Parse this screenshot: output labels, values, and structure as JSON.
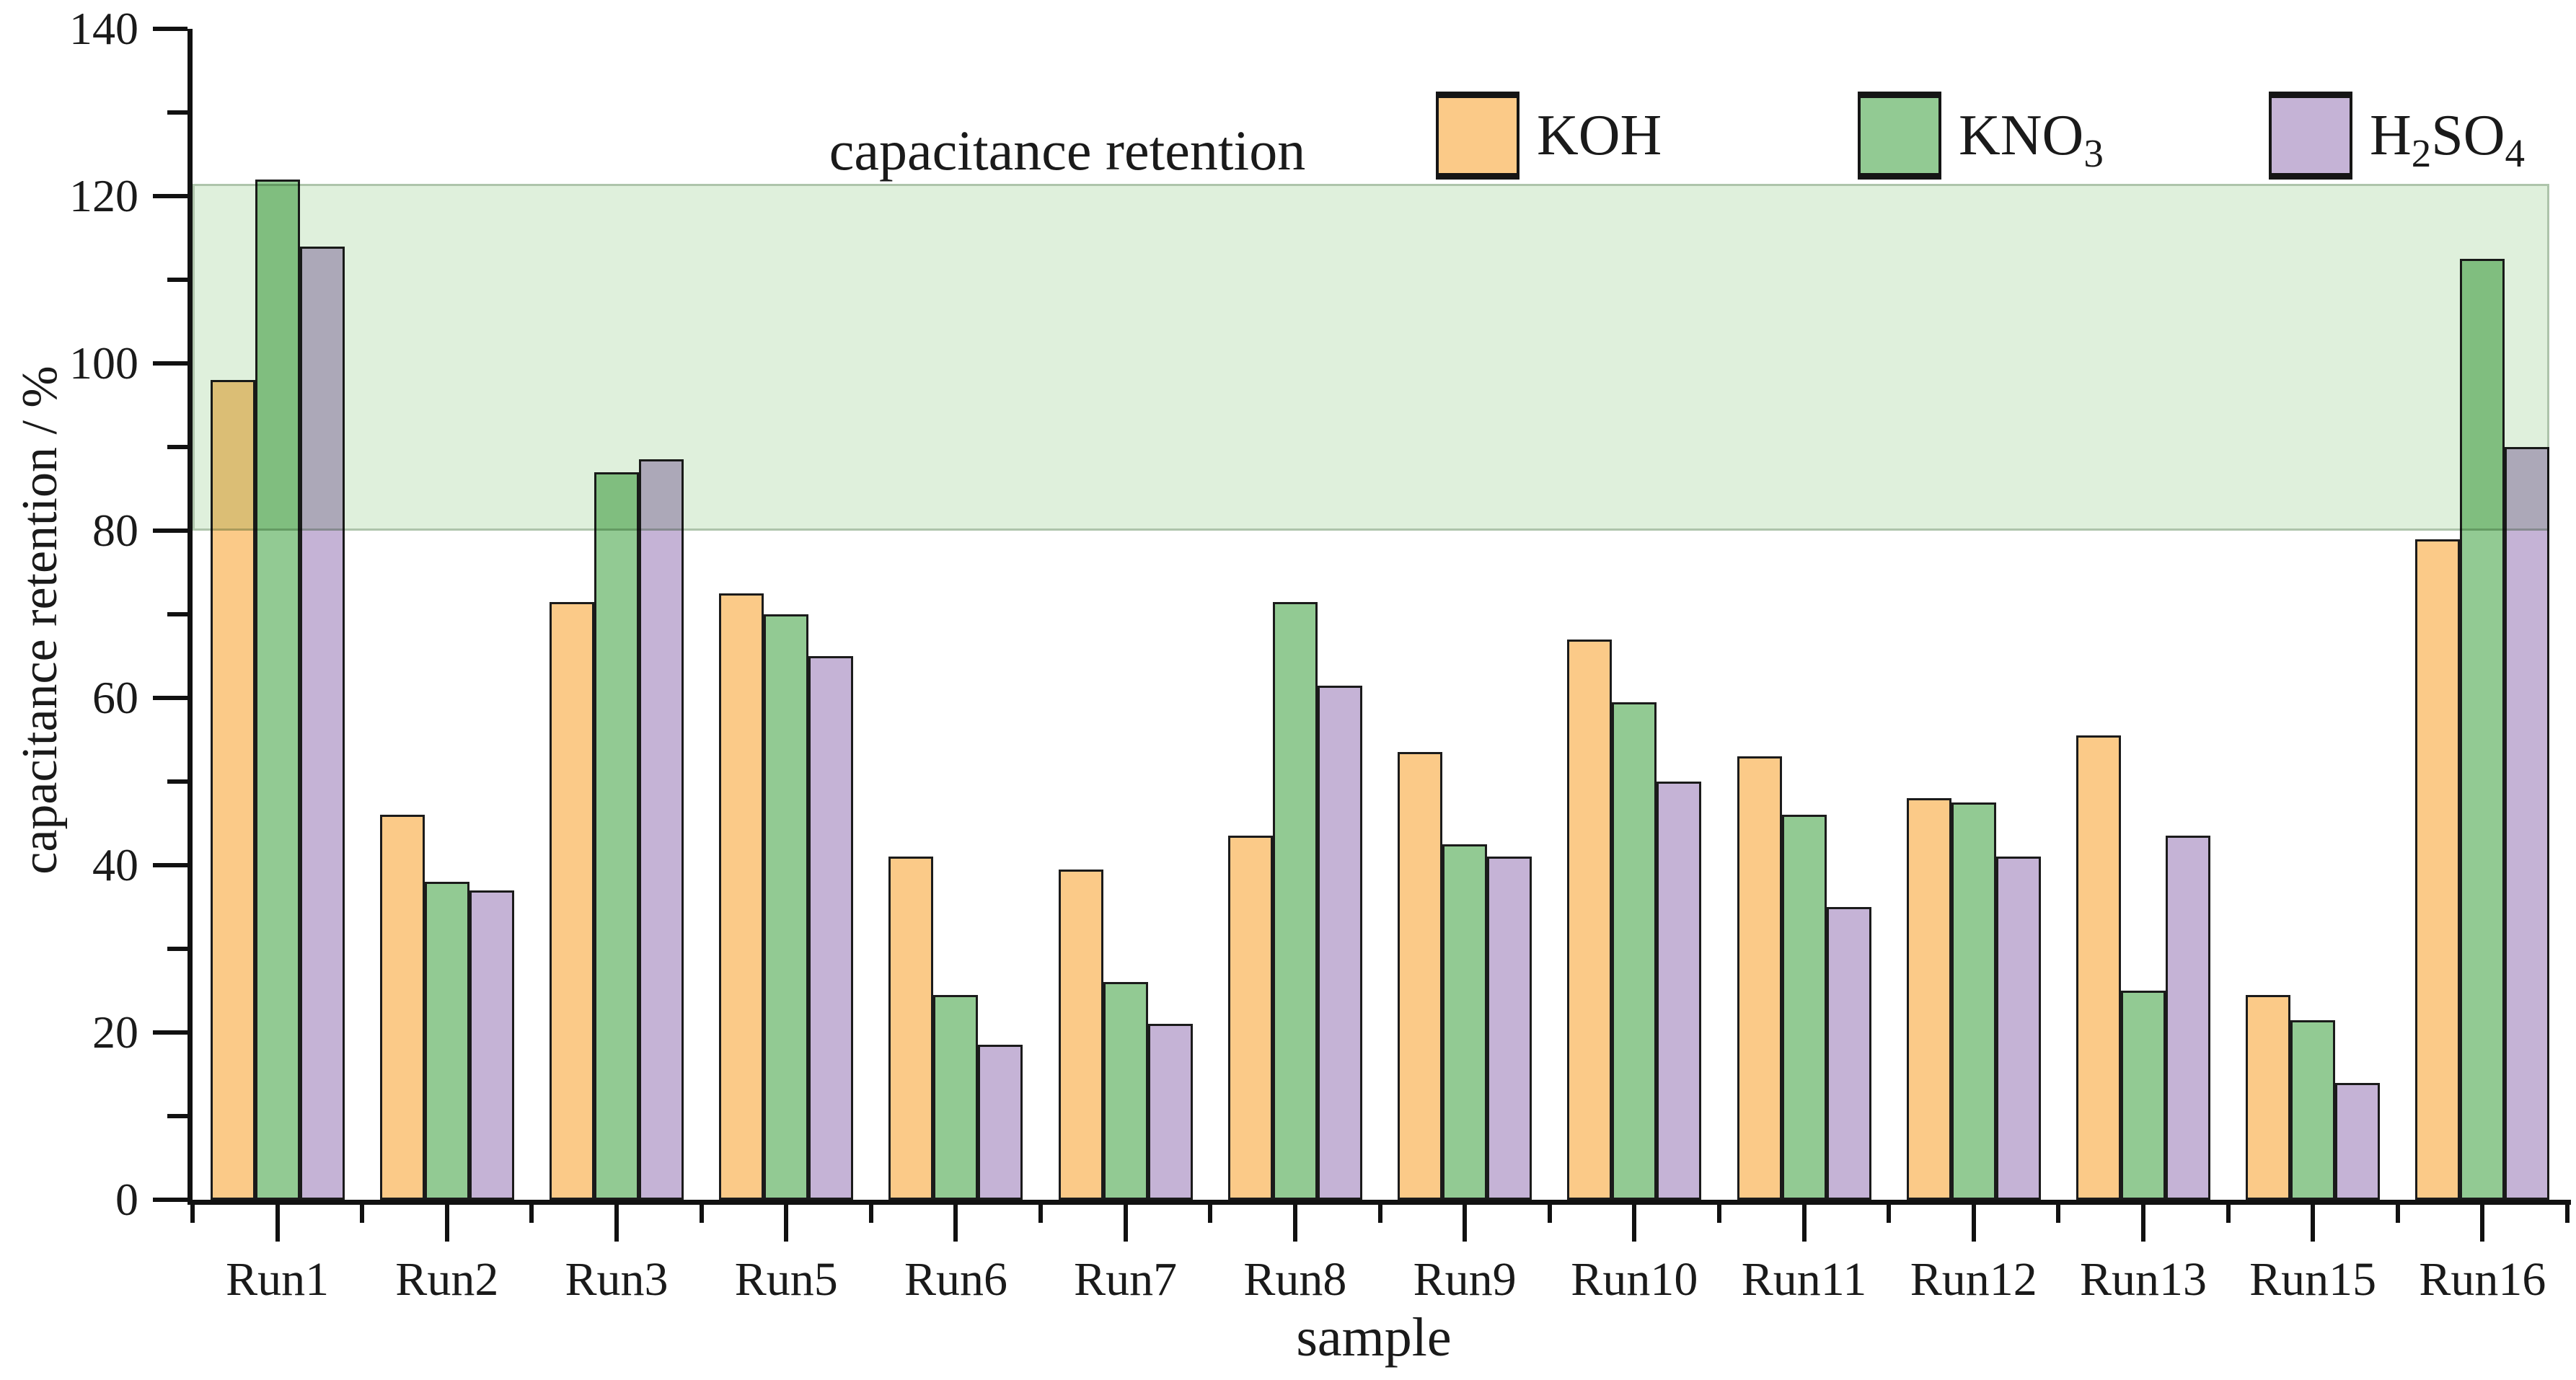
{
  "figure": {
    "title": "capacitance retention",
    "x_axis_label": "sample",
    "y_axis_label": "capacitance retention / %"
  },
  "legend": {
    "position": "top-right",
    "digits_subscript": true,
    "items": [
      {
        "label": "KOH",
        "color": "#FBCA88"
      },
      {
        "label": "KNO3",
        "color": "#92CA93"
      },
      {
        "label": "H2SO4",
        "color": "#C5B3D6"
      }
    ]
  },
  "chart_data": {
    "type": "bar",
    "title": "capacitance retention",
    "xlabel": "sample",
    "ylabel": "capacitance retention / %",
    "ylim": [
      0,
      140
    ],
    "y_major_tick_labels": [
      "0",
      "20",
      "40",
      "60",
      "80",
      "100",
      "120",
      "140"
    ],
    "y_major_step": 20,
    "y_minor_step": 10,
    "grid": false,
    "legend_position": "top",
    "categories": [
      "Run1",
      "Run2",
      "Run3",
      "Run5",
      "Run6",
      "Run7",
      "Run8",
      "Run9",
      "Run10",
      "Run11",
      "Run12",
      "Run13",
      "Run15",
      "Run16"
    ],
    "series": [
      {
        "name": "KOH",
        "color": "#FBCA88",
        "values": [
          98,
          46,
          71.5,
          72.5,
          41,
          39.5,
          43.5,
          53.5,
          67,
          53,
          48,
          55.5,
          24.5,
          79
        ]
      },
      {
        "name": "KNO3",
        "color": "#92CA93",
        "values": [
          122,
          38,
          87,
          70,
          24.5,
          26,
          71.5,
          42.5,
          59.5,
          46,
          47.5,
          25,
          21.5,
          112.5
        ]
      },
      {
        "name": "H2SO4",
        "color": "#C5B3D6",
        "values": [
          114,
          37,
          88.5,
          65,
          18.5,
          21,
          61.5,
          41,
          50,
          35,
          41,
          43.5,
          14,
          90
        ]
      }
    ],
    "highlight_band": {
      "from": 80,
      "to": 121.5,
      "color": "#DFF0DC"
    }
  }
}
